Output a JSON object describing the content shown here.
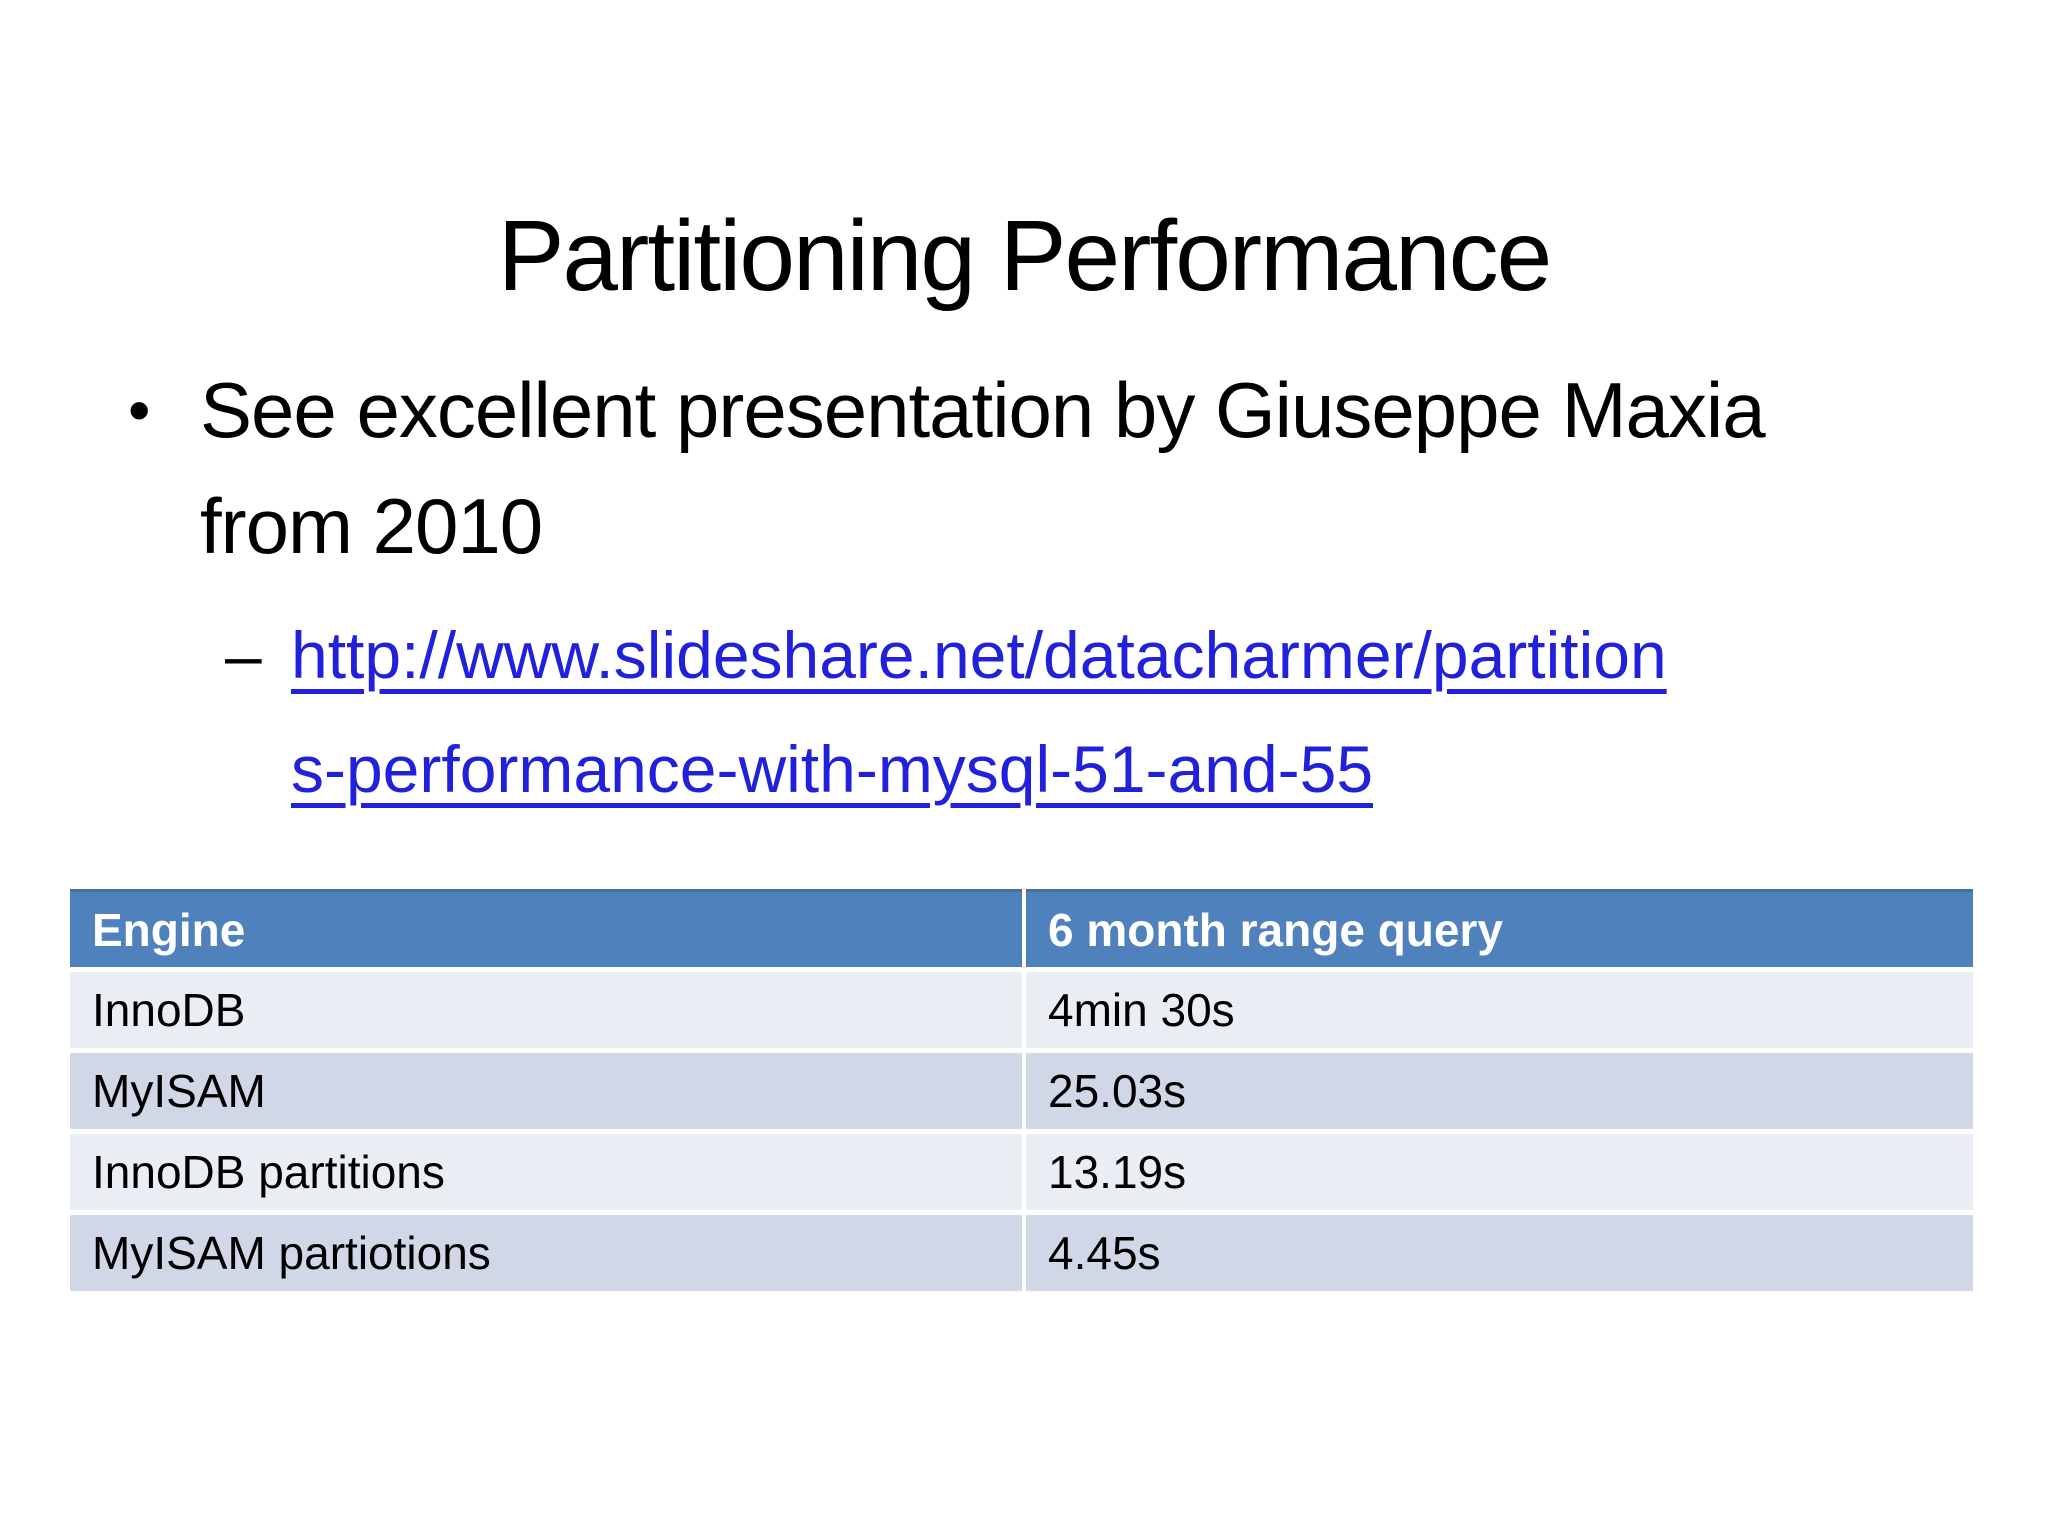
{
  "slide": {
    "title": "Partitioning Performance",
    "bullet": {
      "marker": "•",
      "lines": [
        "See excellent presentation by Giuseppe Maxia",
        "from 2010"
      ]
    },
    "sub_bullet": {
      "marker": "–",
      "link_lines": [
        "http://www.slideshare.net/datacharmer/partition",
        "s-performance-with-mysql-51-and-55"
      ],
      "link_url": "http://www.slideshare.net/datacharmer/partitions-performance-with-mysql-51-and-55"
    },
    "table": {
      "columns": [
        "Engine",
        "6 month range query"
      ],
      "rows": [
        {
          "engine": "InnoDB",
          "query_time": "4min 30s"
        },
        {
          "engine": "MyISAM",
          "query_time": "25.03s"
        },
        {
          "engine": "InnoDB partitions",
          "query_time": "13.19s"
        },
        {
          "engine": "MyISAM partiotions",
          "query_time": "4.45s"
        }
      ]
    },
    "colors": {
      "background": "#FFFFFF",
      "text": "#000000",
      "hyperlink": "#2121DC",
      "table_header_bg": "#4F81BD",
      "table_header_text": "#FFFFFF",
      "table_row_dark_bg": "#D0D8E8",
      "table_row_light_bg": "#E9EDF4"
    }
  }
}
